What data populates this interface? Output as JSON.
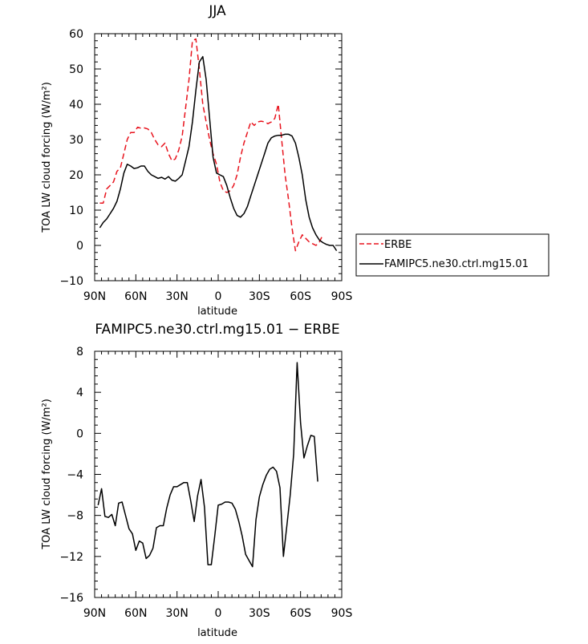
{
  "chart_data": [
    {
      "type": "line",
      "title": "JJA",
      "xlabel": "latitude",
      "ylabel": "TOA LW cloud forcing (W/m²)",
      "xlim": [
        -90,
        90
      ],
      "ylim": [
        -10,
        60
      ],
      "x_ticks": [
        "90N",
        "60N",
        "30N",
        "0",
        "30S",
        "60S",
        "90S"
      ],
      "y_ticks": [
        "−10",
        "0",
        "10",
        "20",
        "30",
        "40",
        "50",
        "60"
      ],
      "legend_position": "right",
      "x": [
        -86.25,
        -83.75,
        -81.25,
        -78.75,
        -76.25,
        -73.75,
        -71.25,
        -68.75,
        -66.25,
        -63.75,
        -61.25,
        -58.75,
        -56.25,
        -53.75,
        -51.25,
        -48.75,
        -46.25,
        -43.75,
        -41.25,
        -38.75,
        -36.25,
        -33.75,
        -31.25,
        -28.75,
        -26.25,
        -23.75,
        -21.25,
        -18.75,
        -16.25,
        -13.75,
        -11.25,
        -8.75,
        -6.25,
        -3.75,
        -1.25,
        1.25,
        3.75,
        6.25,
        8.75,
        11.25,
        13.75,
        16.25,
        18.75,
        21.25,
        23.75,
        26.25,
        28.75,
        31.25,
        33.75,
        36.25,
        38.75,
        41.25,
        43.75,
        46.25,
        48.75,
        51.25,
        53.75,
        56.25,
        58.75,
        61.25,
        63.75,
        66.25,
        68.75,
        71.25,
        73.75,
        76.25,
        78.75,
        81.25,
        83.75,
        86.25,
        88.75
      ],
      "series": [
        {
          "name": "ERBE",
          "color": "#e8141e",
          "dash": "dashed",
          "values": [
            12,
            12,
            16,
            17,
            18,
            21,
            22,
            26,
            30,
            32,
            32,
            33.5,
            33.2,
            33.3,
            33,
            32,
            30,
            28.5,
            28,
            29,
            26,
            24,
            24.5,
            27,
            31,
            39,
            47,
            58,
            58.5,
            50,
            40,
            35,
            30,
            26,
            23,
            18,
            15.5,
            15,
            15.5,
            17,
            20,
            25,
            29,
            32,
            35,
            34,
            35,
            35.2,
            35,
            34.5,
            35,
            36,
            40,
            30,
            20,
            13,
            5,
            -1.5,
            1,
            3,
            2,
            1,
            0.5,
            0,
            1,
            3,
            null,
            null,
            null,
            null,
            null
          ]
        },
        {
          "name": "FAMIPC5.ne30.ctrl.mg15.01",
          "color": "#000000",
          "dash": "solid",
          "values": [
            5,
            6.5,
            7.5,
            9,
            10.5,
            12.5,
            16,
            20.5,
            23,
            22.5,
            21.8,
            22,
            22.5,
            22.5,
            21,
            20,
            19.5,
            19,
            19.3,
            18.8,
            19.5,
            18.5,
            18.2,
            19,
            20,
            24,
            28,
            35,
            44,
            52,
            53.5,
            47,
            36,
            25,
            20.5,
            20,
            19.5,
            17,
            13.5,
            10.5,
            8.5,
            8,
            9,
            11,
            14,
            17,
            20,
            23,
            26,
            29,
            30.5,
            31,
            31.2,
            31.2,
            31.5,
            31.5,
            31,
            29,
            25,
            20,
            13,
            8,
            5,
            3,
            1.5,
            0.8,
            0.3,
            0,
            0,
            -1.5,
            null
          ]
        }
      ]
    },
    {
      "type": "line",
      "title": "FAMIPC5.ne30.ctrl.mg15.01 − ERBE",
      "xlabel": "latitude",
      "ylabel": "TOA LW cloud forcing (W/m²)",
      "xlim": [
        -90,
        90
      ],
      "ylim": [
        -16,
        8
      ],
      "x_ticks": [
        "90N",
        "60N",
        "30N",
        "0",
        "30S",
        "60S",
        "90S"
      ],
      "y_ticks": [
        "−16",
        "−12",
        "−8",
        "−4",
        "0",
        "4",
        "8"
      ],
      "x": [
        -87.5,
        -85,
        -82.5,
        -80,
        -77.5,
        -75,
        -72.5,
        -70,
        -67.5,
        -65,
        -62.5,
        -60,
        -57.5,
        -55,
        -52.5,
        -50,
        -47.5,
        -45,
        -42.5,
        -40,
        -37.5,
        -35,
        -32.5,
        -30,
        -27.5,
        -25,
        -22.5,
        -20,
        -17.5,
        -15,
        -12.5,
        -10,
        -7.5,
        -5,
        -2.5,
        0,
        2.5,
        5,
        7.5,
        10,
        12.5,
        15,
        17.5,
        20,
        22.5,
        25,
        27.5,
        30,
        32.5,
        35,
        37.5,
        40,
        42.5,
        45,
        47.5,
        50,
        52.5,
        55,
        57.5,
        60,
        62.5,
        65,
        67.5,
        70,
        72.5,
        75,
        77.5,
        80,
        82.5,
        85,
        87.5
      ],
      "series": [
        {
          "name": "",
          "color": "#000000",
          "dash": "solid",
          "values": [
            -7,
            -5.4,
            -8.1,
            -8.2,
            -7.9,
            -9,
            -6.8,
            -6.7,
            -8,
            -9.3,
            -9.8,
            -11.4,
            -10.5,
            -10.7,
            -12.2,
            -11.9,
            -11.2,
            -9.2,
            -9,
            -9,
            -7.3,
            -6,
            -5.2,
            -5.2,
            -5,
            -4.8,
            -4.8,
            -6.6,
            -8.6,
            -6.1,
            -4.5,
            -7.2,
            -12.8,
            -12.8,
            -10,
            -7,
            -6.9,
            -6.7,
            -6.7,
            -6.8,
            -7.4,
            -8.6,
            -10,
            -11.8,
            -12.4,
            -13,
            -8.4,
            -6.2,
            -5,
            -4.1,
            -3.5,
            -3.3,
            -3.7,
            -5.3,
            -12,
            -9,
            -6,
            -2,
            6.9,
            1,
            -2.4,
            -1.2,
            -0.2,
            -0.3,
            -4.7,
            null,
            null,
            null,
            null,
            null,
            null
          ]
        }
      ]
    }
  ]
}
